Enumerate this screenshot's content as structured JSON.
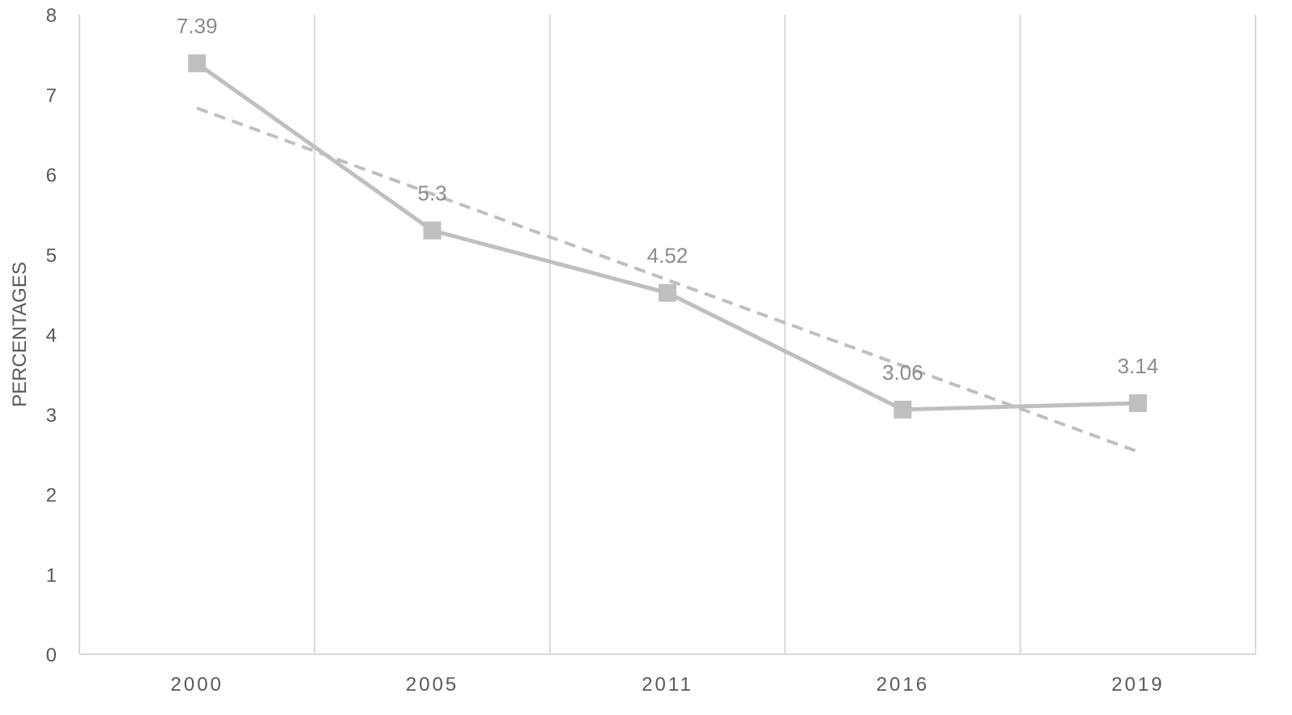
{
  "chart_data": {
    "type": "line",
    "title": "",
    "xlabel": "",
    "ylabel": "PERCENTAGES",
    "categories": [
      "2000",
      "2005",
      "2011",
      "2016",
      "2019"
    ],
    "ylim": [
      0,
      8
    ],
    "yticks": [
      0,
      1,
      2,
      3,
      4,
      5,
      6,
      7,
      8
    ],
    "series": [
      {
        "values": [
          7.39,
          5.3,
          4.52,
          3.06,
          3.14
        ],
        "data_labels": [
          "7.39",
          "5.3",
          "4.52",
          "3.06",
          "3.14"
        ],
        "marker": "square",
        "color": "#bfbfbf"
      }
    ],
    "trendline": {
      "type": "linear",
      "style": "dashed",
      "color": "#bfbfbf"
    },
    "grid": {
      "vertical": true,
      "horizontal": false
    },
    "legend": "none"
  }
}
